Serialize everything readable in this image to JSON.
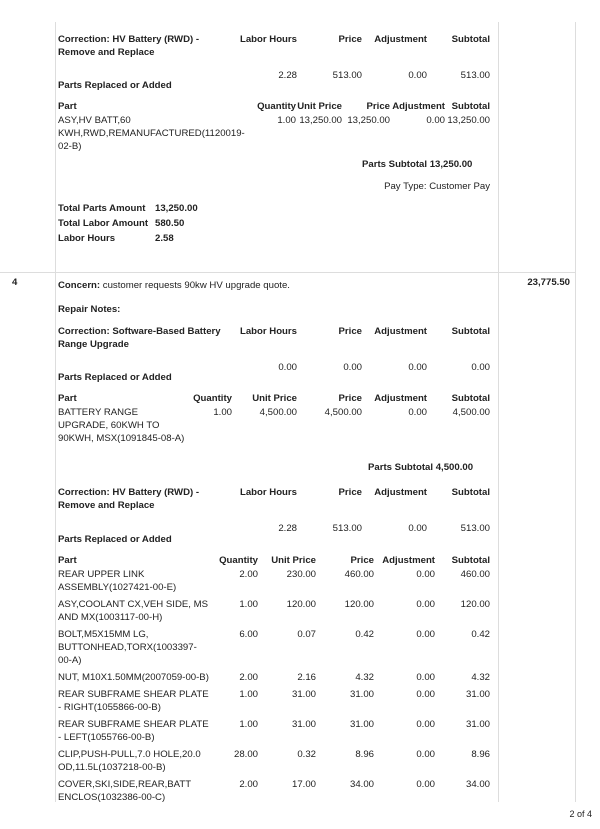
{
  "section3": {
    "correction": {
      "title": "Correction: HV Battery (RWD) - Remove and Replace",
      "headers": [
        "Labor Hours",
        "Price",
        "Adjustment",
        "Subtotal"
      ],
      "values": [
        "2.28",
        "513.00",
        "0.00",
        "513.00"
      ]
    },
    "parts_title": "Parts Replaced or Added",
    "parts": {
      "headers": [
        "Part",
        "Quantity",
        "Unit Price",
        "Price",
        "Adjustment",
        "Subtotal"
      ],
      "rows": [
        [
          "ASY,HV BATT,60 KWH,RWD,REMANUFACTURED(1120019-02-B)",
          "1.00",
          "13,250.00",
          "13,250.00",
          "0.00",
          "13,250.00"
        ]
      ]
    },
    "parts_subtotal": "Parts Subtotal 13,250.00",
    "pay_type": "Pay Type: Customer Pay",
    "totals": [
      {
        "label": "Total Parts Amount",
        "value": "13,250.00"
      },
      {
        "label": "Total Labor Amount",
        "value": "580.50"
      },
      {
        "label": "Labor Hours",
        "value": "2.58"
      }
    ]
  },
  "section4": {
    "number": "4",
    "amount": "23,775.50",
    "concern_label": "Concern:",
    "concern_text": " customer requests 90kw HV upgrade quote.",
    "repair_notes": "Repair Notes:",
    "correction1": {
      "title": "Correction: Software-Based Battery Range Upgrade",
      "headers": [
        "Labor Hours",
        "Price",
        "Adjustment",
        "Subtotal"
      ],
      "values": [
        "0.00",
        "0.00",
        "0.00",
        "0.00"
      ]
    },
    "parts1_title": "Parts Replaced or Added",
    "parts1": {
      "headers": [
        "Part",
        "Quantity",
        "Unit Price",
        "Price",
        "Adjustment",
        "Subtotal"
      ],
      "rows": [
        [
          "BATTERY RANGE UPGRADE, 60KWH TO 90KWH, MSX(1091845-08-A)",
          "1.00",
          "4,500.00",
          "4,500.00",
          "0.00",
          "4,500.00"
        ]
      ]
    },
    "parts1_subtotal": "Parts Subtotal 4,500.00",
    "correction2": {
      "title": "Correction: HV Battery (RWD) - Remove and Replace",
      "headers": [
        "Labor Hours",
        "Price",
        "Adjustment",
        "Subtotal"
      ],
      "values": [
        "2.28",
        "513.00",
        "0.00",
        "513.00"
      ]
    },
    "parts2_title": "Parts Replaced or Added",
    "parts2": {
      "headers": [
        "Part",
        "Quantity",
        "Unit Price",
        "Price",
        "Adjustment",
        "Subtotal"
      ],
      "rows": [
        [
          "REAR UPPER LINK ASSEMBLY(1027421-00-E)",
          "2.00",
          "230.00",
          "460.00",
          "0.00",
          "460.00"
        ],
        [
          "ASY,COOLANT CX,VEH SIDE, MS AND MX(1003117-00-H)",
          "1.00",
          "120.00",
          "120.00",
          "0.00",
          "120.00"
        ],
        [
          "BOLT,M5X15MM LG, BUTTONHEAD,TORX(1003397-00-A)",
          "6.00",
          "0.07",
          "0.42",
          "0.00",
          "0.42"
        ],
        [
          "NUT, M10X1.50MM(2007059-00-B)",
          "2.00",
          "2.16",
          "4.32",
          "0.00",
          "4.32"
        ],
        [
          "REAR SUBFRAME SHEAR PLATE - RIGHT(1055866-00-B)",
          "1.00",
          "31.00",
          "31.00",
          "0.00",
          "31.00"
        ],
        [
          "REAR SUBFRAME SHEAR PLATE - LEFT(1055766-00-B)",
          "1.00",
          "31.00",
          "31.00",
          "0.00",
          "31.00"
        ],
        [
          "CLIP,PUSH-PULL,7.0 HOLE,20.0 OD,11.5L(1037218-00-B)",
          "28.00",
          "0.32",
          "8.96",
          "0.00",
          "8.96"
        ],
        [
          "COVER,SKI,SIDE,REAR,BATT ENCLOS(1032386-00-C)",
          "2.00",
          "17.00",
          "34.00",
          "0.00",
          "34.00"
        ]
      ]
    }
  },
  "page_indicator": "2 of 4"
}
